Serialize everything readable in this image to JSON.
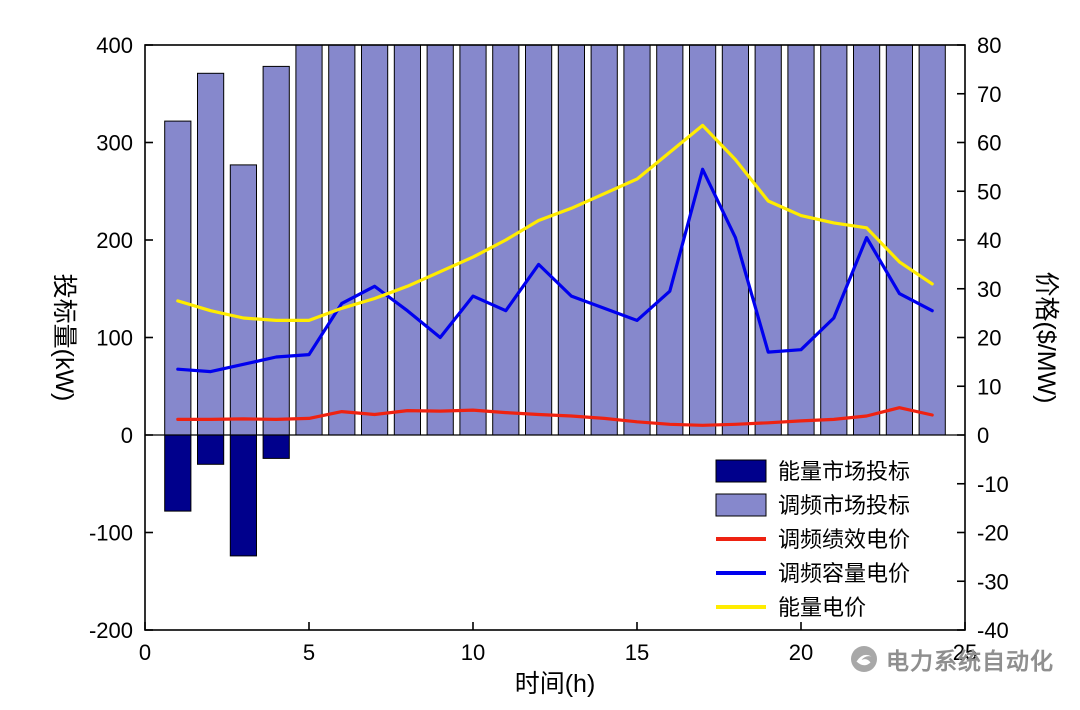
{
  "watermark": {
    "text": "电力系统自动化",
    "color": "#8f8f8f"
  },
  "chart_data": {
    "type": "bar+line",
    "title": "",
    "xlabel": "时间(h)",
    "ylabel_left": "投标量(kW)",
    "ylabel_right": "价格($/MW)",
    "xlim": [
      0,
      25
    ],
    "ylim_left": [
      -200,
      400
    ],
    "ylim_right": [
      -40,
      80
    ],
    "xticks": [
      0,
      5,
      10,
      15,
      20,
      25
    ],
    "yticks_left": [
      -200,
      -100,
      0,
      100,
      200,
      300,
      400
    ],
    "yticks_right": [
      -40,
      -30,
      -20,
      -10,
      0,
      10,
      20,
      30,
      40,
      50,
      60,
      70,
      80
    ],
    "grid": false,
    "legend_position": "inside-lower-right",
    "x": [
      1,
      2,
      3,
      4,
      5,
      6,
      7,
      8,
      9,
      10,
      11,
      12,
      13,
      14,
      15,
      16,
      17,
      18,
      19,
      20,
      21,
      22,
      23,
      24
    ],
    "series": [
      {
        "key": "energy-market-bid",
        "name": "能量市场投标",
        "type": "bar",
        "axis": "left",
        "color": "#00008c",
        "values": [
          -78,
          -30,
          -124,
          -24,
          0,
          0,
          0,
          0,
          0,
          0,
          0,
          0,
          0,
          0,
          0,
          0,
          0,
          0,
          0,
          0,
          0,
          0,
          0,
          0
        ]
      },
      {
        "key": "regulation-market-bid",
        "name": "调频市场投标",
        "type": "bar",
        "axis": "left",
        "color": "#8688cc",
        "values": [
          322,
          371,
          277,
          378,
          400,
          400,
          400,
          400,
          400,
          400,
          400,
          400,
          400,
          400,
          400,
          400,
          400,
          400,
          400,
          400,
          400,
          400,
          400,
          400
        ]
      },
      {
        "key": "regulation-performance-price",
        "name": "调频绩效电价",
        "type": "line",
        "axis": "right",
        "color": "#ee2211",
        "values": [
          3.2,
          3.2,
          3.3,
          3.2,
          3.4,
          4.8,
          4.2,
          5.0,
          4.9,
          5.1,
          4.6,
          4.2,
          3.9,
          3.4,
          2.7,
          2.2,
          2.0,
          2.2,
          2.5,
          2.9,
          3.2,
          3.9,
          5.6,
          4.1
        ]
      },
      {
        "key": "regulation-capacity-price",
        "name": "调频容量电价",
        "type": "line",
        "axis": "right",
        "color": "#0000ee",
        "values": [
          13.5,
          13.0,
          14.5,
          16.0,
          16.5,
          27.0,
          30.5,
          25.5,
          20.0,
          28.5,
          25.5,
          35.0,
          28.5,
          26.0,
          23.5,
          29.5,
          54.5,
          40.5,
          17.0,
          17.5,
          24.0,
          40.5,
          29.0,
          25.5
        ]
      },
      {
        "key": "energy-price",
        "name": "能量电价",
        "type": "line",
        "axis": "right",
        "color": "#ffec00",
        "values": [
          27.5,
          25.5,
          24.0,
          23.5,
          23.5,
          26.0,
          28.0,
          30.5,
          33.5,
          36.5,
          40.0,
          44.0,
          46.5,
          49.5,
          52.5,
          58.0,
          63.5,
          56.5,
          48.0,
          45.0,
          43.5,
          42.5,
          35.5,
          31.0
        ]
      }
    ]
  }
}
